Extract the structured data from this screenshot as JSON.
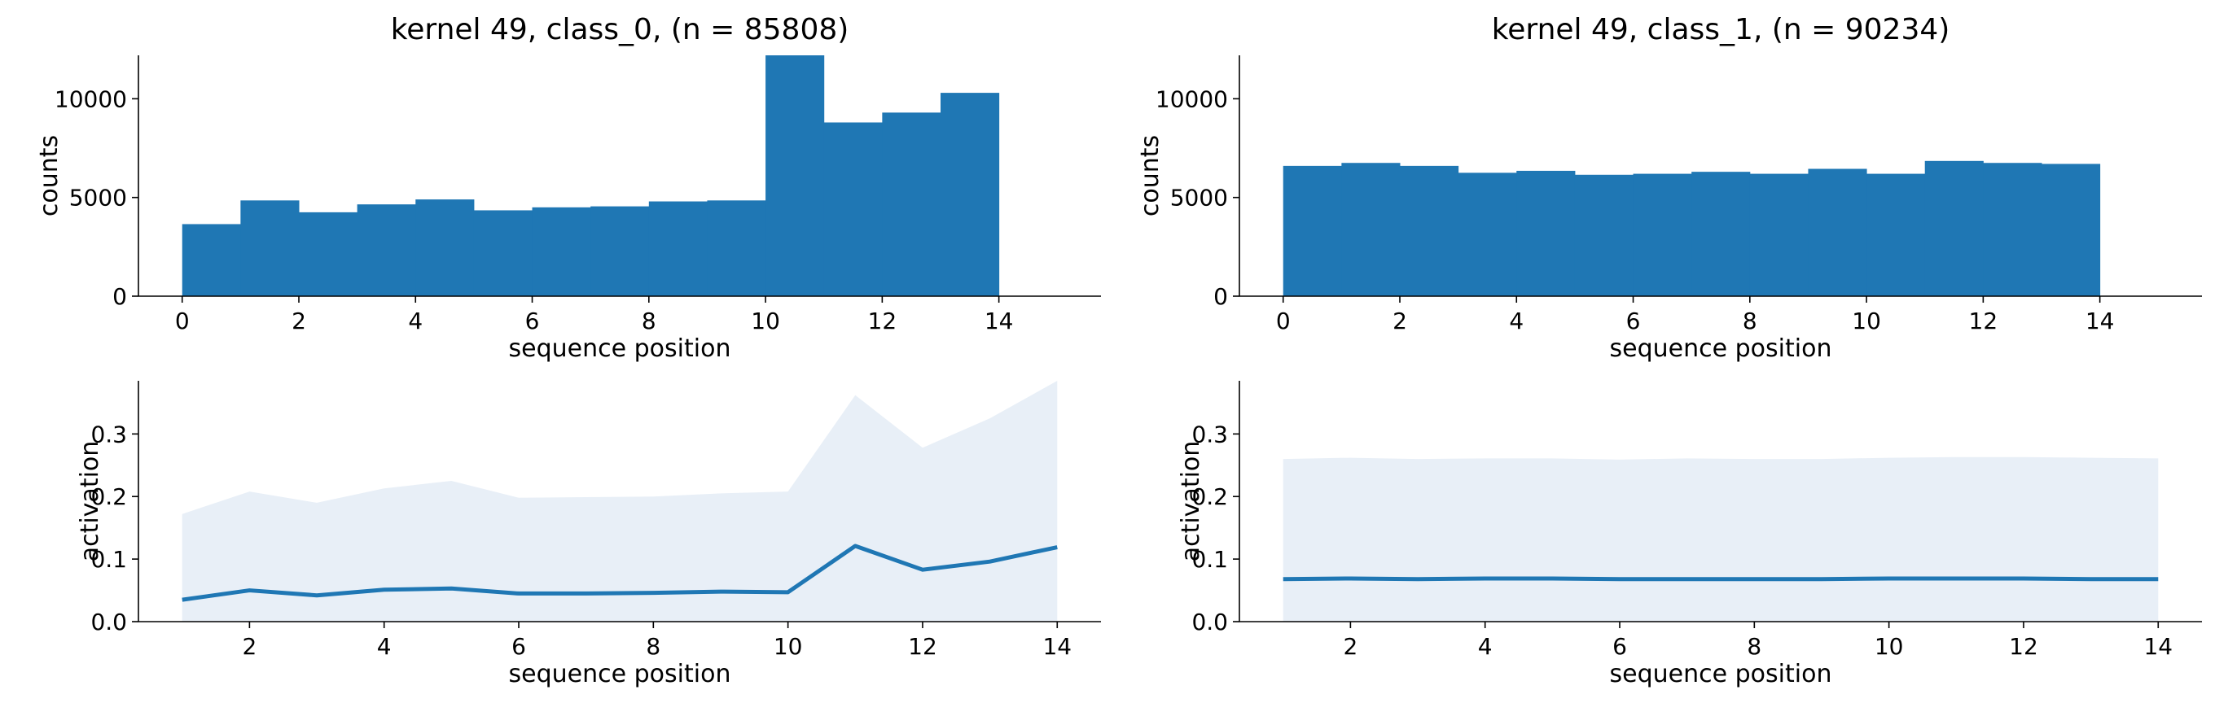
{
  "chart_data": [
    {
      "type": "bar",
      "title": "kernel 49, class_0, (n = 85808)",
      "xlabel": "sequence position",
      "ylabel": "counts",
      "bin_edges": [
        0,
        1,
        2,
        3,
        4,
        5,
        6,
        7,
        8,
        9,
        10,
        11,
        12,
        13,
        14
      ],
      "values": [
        3650,
        4850,
        4250,
        4650,
        4900,
        4350,
        4500,
        4550,
        4800,
        4850,
        12200,
        8800,
        9300,
        10300
      ],
      "xlim": [
        -0.75,
        15.75
      ],
      "ylim": [
        0,
        12200
      ],
      "xticks": [
        0,
        2,
        4,
        6,
        8,
        10,
        12,
        14
      ],
      "yticks": [
        0,
        5000,
        10000
      ],
      "color": "#1f77b4"
    },
    {
      "type": "bar",
      "title": "kernel 49, class_1, (n = 90234)",
      "xlabel": "sequence position",
      "ylabel": "counts",
      "bin_edges": [
        0,
        1,
        2,
        3,
        4,
        5,
        6,
        7,
        8,
        9,
        10,
        11,
        12,
        13,
        14
      ],
      "values": [
        6600,
        6750,
        6600,
        6250,
        6350,
        6150,
        6200,
        6300,
        6200,
        6450,
        6200,
        6850,
        6750,
        6700
      ],
      "xlim": [
        -0.75,
        15.75
      ],
      "ylim": [
        0,
        12200
      ],
      "xticks": [
        0,
        2,
        4,
        6,
        8,
        10,
        12,
        14
      ],
      "yticks": [
        0,
        5000,
        10000
      ],
      "color": "#1f77b4"
    },
    {
      "type": "area",
      "title": "",
      "xlabel": "sequence position",
      "ylabel": "activation",
      "x": [
        1,
        2,
        3,
        4,
        5,
        6,
        7,
        8,
        9,
        10,
        11,
        12,
        13,
        14
      ],
      "mean": [
        0.035,
        0.05,
        0.042,
        0.051,
        0.053,
        0.045,
        0.045,
        0.046,
        0.048,
        0.047,
        0.121,
        0.083,
        0.096,
        0.119
      ],
      "upper": [
        0.172,
        0.208,
        0.19,
        0.213,
        0.225,
        0.198,
        0.199,
        0.2,
        0.205,
        0.208,
        0.362,
        0.278,
        0.325,
        0.385
      ],
      "lower": [
        0,
        0,
        0,
        0,
        0,
        0,
        0,
        0,
        0,
        0,
        0,
        0,
        0,
        0
      ],
      "xlim": [
        0.35,
        14.65
      ],
      "ylim": [
        0,
        0.385
      ],
      "xticks": [
        2,
        4,
        6,
        8,
        10,
        12,
        14
      ],
      "yticks": [
        0.0,
        0.1,
        0.2,
        0.3
      ],
      "line_color": "#1f77b4",
      "fill_color": "#e8eff7"
    },
    {
      "type": "area",
      "title": "",
      "xlabel": "sequence position",
      "ylabel": "activation",
      "x": [
        1,
        2,
        3,
        4,
        5,
        6,
        7,
        8,
        9,
        10,
        11,
        12,
        13,
        14
      ],
      "mean": [
        0.068,
        0.069,
        0.068,
        0.069,
        0.069,
        0.068,
        0.068,
        0.068,
        0.068,
        0.069,
        0.069,
        0.069,
        0.068,
        0.068
      ],
      "upper": [
        0.26,
        0.262,
        0.26,
        0.261,
        0.261,
        0.259,
        0.261,
        0.26,
        0.26,
        0.262,
        0.263,
        0.263,
        0.262,
        0.261
      ],
      "lower": [
        0,
        0,
        0,
        0,
        0,
        0,
        0,
        0,
        0,
        0,
        0,
        0,
        0,
        0
      ],
      "xlim": [
        0.35,
        14.65
      ],
      "ylim": [
        0,
        0.385
      ],
      "xticks": [
        2,
        4,
        6,
        8,
        10,
        12,
        14
      ],
      "yticks": [
        0.0,
        0.1,
        0.2,
        0.3
      ],
      "line_color": "#1f77b4",
      "fill_color": "#e8eff7"
    }
  ]
}
